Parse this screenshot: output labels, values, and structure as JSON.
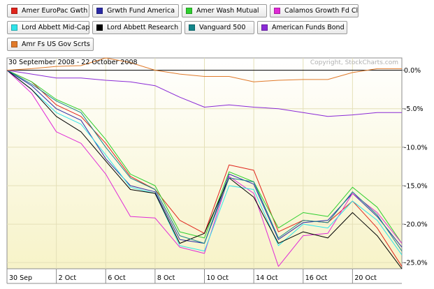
{
  "legend": [
    {
      "label": "Amer EuroPac Gwth",
      "color": "#e0241c"
    },
    {
      "label": "Grwth Fund America",
      "color": "#2a2aa6"
    },
    {
      "label": "Amer Wash Mutual",
      "color": "#2fcf2f"
    },
    {
      "label": "Calamos Growth Fd Cl",
      "color": "#e02ad6"
    },
    {
      "label": "Lord Abbett Mid-Cap",
      "color": "#2fe3ea"
    },
    {
      "label": "Lord Abbett Research",
      "color": "#000000"
    },
    {
      "label": "Vanguard 500",
      "color": "#13858a"
    },
    {
      "label": "American Funds Bond",
      "color": "#8a2ad6"
    },
    {
      "label": "Amr Fs US Gov Scrts",
      "color": "#e07a2a"
    }
  ],
  "chart_data": {
    "type": "line",
    "date_range": "30 September 2008 - 22 October 2008",
    "copyright": "Copyright, StockCharts.com",
    "x": [
      "30 Sep",
      "1 Oct",
      "2 Oct",
      "3 Oct",
      "6 Oct",
      "7 Oct",
      "8 Oct",
      "9 Oct",
      "10 Oct",
      "13 Oct",
      "14 Oct",
      "15 Oct",
      "16 Oct",
      "17 Oct",
      "20 Oct",
      "21 Oct",
      "22 Oct"
    ],
    "x_tick_labels": [
      "30 Sep",
      "2 Oct",
      "6 Oct",
      "8 Oct",
      "10 Oct",
      "14 Oct",
      "16 Oct",
      "20 Oct"
    ],
    "y_tick_labels": [
      "0.0%",
      "-5.0%",
      "-10.0%",
      "-15.0%",
      "-20.0%",
      "-25.0%"
    ],
    "y_ticks": [
      0,
      -5,
      -10,
      -15,
      -20,
      -25
    ],
    "ylim": [
      -25.8,
      1.6
    ],
    "grid": true,
    "legend_placement": "top",
    "series": [
      {
        "name": "Amer EuroPac Gwth",
        "color": "#e0241c",
        "values": [
          0,
          -1.5,
          -4.5,
          -6.0,
          -9.5,
          -13.8,
          -15.5,
          -19.5,
          -21.2,
          -12.3,
          -13.0,
          -21.0,
          -19.5,
          -19.8,
          -17.0,
          -20.5,
          -25.5
        ]
      },
      {
        "name": "Grwth Fund America",
        "color": "#2a2aa6",
        "values": [
          0,
          -2.0,
          -5.0,
          -6.5,
          -11.5,
          -15.0,
          -15.8,
          -22.0,
          -22.5,
          -13.5,
          -14.8,
          -22.0,
          -19.8,
          -19.5,
          -16.0,
          -19.0,
          -23.0
        ]
      },
      {
        "name": "Amer Wash Mutual",
        "color": "#2fcf2f",
        "values": [
          0,
          -1.5,
          -3.8,
          -5.2,
          -9.0,
          -13.5,
          -15.0,
          -21.0,
          -21.8,
          -13.2,
          -14.5,
          -20.5,
          -18.5,
          -19.0,
          -15.2,
          -17.8,
          -22.5
        ]
      },
      {
        "name": "Calamos Growth Fd Cl",
        "color": "#e02ad6",
        "values": [
          0,
          -3.0,
          -8.0,
          -9.5,
          -13.5,
          -19.0,
          -19.2,
          -23.0,
          -23.8,
          -13.8,
          -16.0,
          -25.5,
          -21.5,
          -21.2,
          -16.0,
          -18.5,
          -22.5
        ]
      },
      {
        "name": "Lord Abbett Mid-Cap",
        "color": "#2fe3ea",
        "values": [
          0,
          -2.5,
          -5.5,
          -7.0,
          -11.0,
          -15.2,
          -16.0,
          -22.8,
          -23.5,
          -15.0,
          -15.5,
          -22.8,
          -20.0,
          -20.5,
          -17.0,
          -19.5,
          -24.0
        ]
      },
      {
        "name": "Lord Abbett Research",
        "color": "#000000",
        "values": [
          0,
          -2.5,
          -6.0,
          -8.0,
          -11.8,
          -15.5,
          -16.0,
          -22.5,
          -21.2,
          -14.0,
          -16.5,
          -22.5,
          -21.0,
          -21.8,
          -18.5,
          -21.5,
          -25.8
        ]
      },
      {
        "name": "Vanguard 500",
        "color": "#13858a",
        "values": [
          0,
          -1.8,
          -4.0,
          -5.5,
          -10.0,
          -14.0,
          -15.5,
          -21.5,
          -22.5,
          -14.0,
          -14.5,
          -21.8,
          -19.5,
          -19.8,
          -15.8,
          -18.8,
          -23.5
        ]
      },
      {
        "name": "American Funds Bond",
        "color": "#8a2ad6",
        "values": [
          0,
          -0.5,
          -1.0,
          -1.0,
          -1.3,
          -1.5,
          -2.0,
          -3.5,
          -4.8,
          -4.5,
          -4.8,
          -5.0,
          -5.5,
          -6.0,
          -5.8,
          -5.5,
          -5.5
        ]
      },
      {
        "name": "Amr Fs US Gov Scrts",
        "color": "#e07a2a",
        "values": [
          0,
          0.2,
          0.5,
          0.6,
          1.6,
          1.0,
          0.0,
          -0.5,
          -0.8,
          -0.8,
          -1.5,
          -1.3,
          -1.2,
          -1.2,
          -0.3,
          0.2,
          0.2
        ]
      }
    ]
  }
}
